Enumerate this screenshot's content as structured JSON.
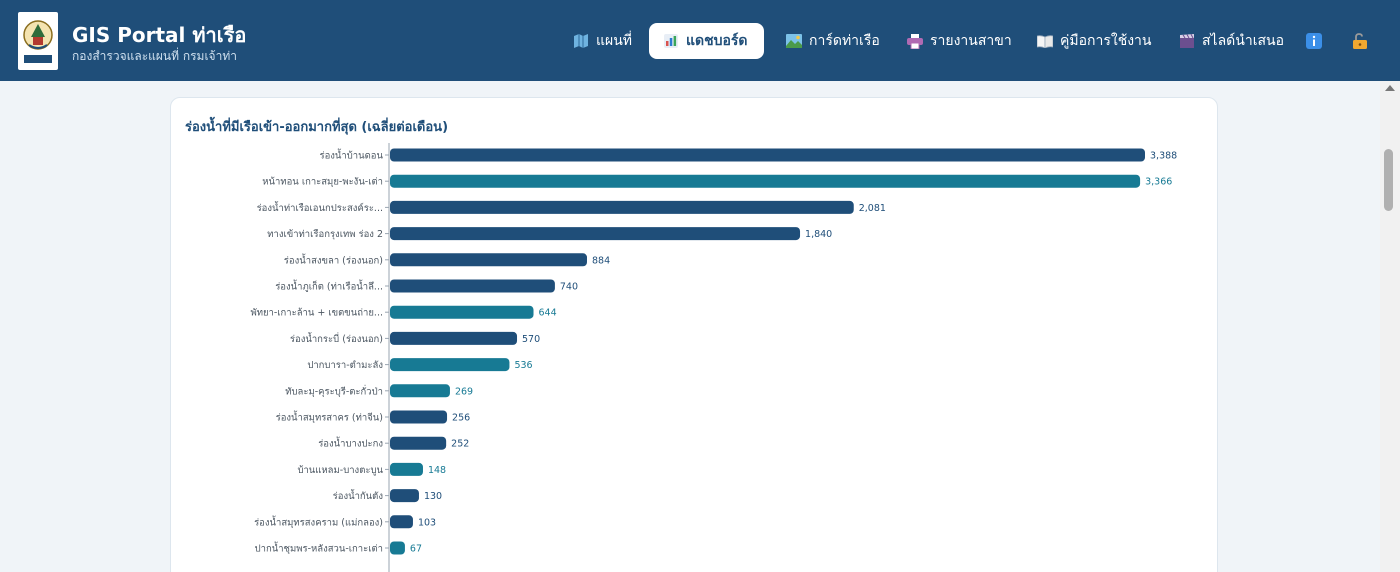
{
  "header": {
    "title": "GIS Portal ท่าเรือ",
    "subtitle": "กองสำรวจและแผนที่ กรมเจ้าท่า",
    "nav": [
      {
        "label": "แผนที่",
        "icon": "map-icon"
      },
      {
        "label": "แดชบอร์ด",
        "icon": "bar-chart-icon",
        "active": true
      },
      {
        "label": "การ์ดท่าเรือ",
        "icon": "picture-icon"
      },
      {
        "label": "รายงานสาขา",
        "icon": "printer-icon"
      },
      {
        "label": "คู่มือการใช้งาน",
        "icon": "book-icon"
      },
      {
        "label": "สไลด์นำเสนอ",
        "icon": "clapperboard-icon"
      }
    ],
    "info_icon": "info-icon",
    "lock_icon": "unlock-icon"
  },
  "colors": {
    "header_bg": "#1f4e79",
    "bar_navy": "#1f4e79",
    "bar_teal": "#177a94"
  },
  "card": {
    "title": "ร่องน้ำที่มีเรือเข้า-ออกมากที่สุด (เฉลี่ยต่อเดือน)"
  },
  "chart_data": {
    "type": "bar",
    "orientation": "horizontal",
    "title": "ร่องน้ำที่มีเรือเข้า-ออกมากที่สุด (เฉลี่ยต่อเดือน)",
    "categories": [
      "ร่องน้ำบ้านดอน",
      "หน้าทอน เกาะสมุย-พะงัน-เต่า",
      "ร่องน้ำท่าเรือเอนกประสงค์ระ...",
      "ทางเข้าท่าเรือกรุงเทพ ร่อง 2",
      "ร่องน้ำสงขลา (ร่องนอก)",
      "ร่องน้ำภูเก็ต (ท่าเรือน้ำลึ...",
      "พัทยา-เกาะล้าน + เขตขนถ่าย...",
      "ร่องน้ำกระบี่ (ร่องนอก)",
      "ปากบารา-ตำมะลัง",
      "ทับละมุ-คุระบุรี-ตะกั่วป่า",
      "ร่องน้ำสมุทรสาคร (ท่าจีน)",
      "ร่องน้ำบางปะกง",
      "บ้านแหลม-บางตะบูน",
      "ร่องน้ำกันตัง",
      "ร่องน้ำสมุทรสงคราม (แม่กลอง)",
      "ปากน้ำชุมพร-หลังสวน-เกาะเต่า"
    ],
    "values": [
      3388,
      3366,
      2081,
      1840,
      884,
      740,
      644,
      570,
      536,
      269,
      256,
      252,
      148,
      130,
      103,
      67
    ],
    "value_labels": [
      "3,388",
      "3,366",
      "2,081",
      "1,840",
      "884",
      "740",
      "644",
      "570",
      "536",
      "269",
      "256",
      "252",
      "148",
      "130",
      "103",
      "67"
    ],
    "bar_colors": [
      "navy",
      "teal",
      "navy",
      "navy",
      "navy",
      "navy",
      "teal",
      "navy",
      "teal",
      "teal",
      "navy",
      "navy",
      "teal",
      "navy",
      "navy",
      "teal"
    ],
    "xlim": [
      0,
      3388
    ],
    "grid": false,
    "legend": "none"
  }
}
